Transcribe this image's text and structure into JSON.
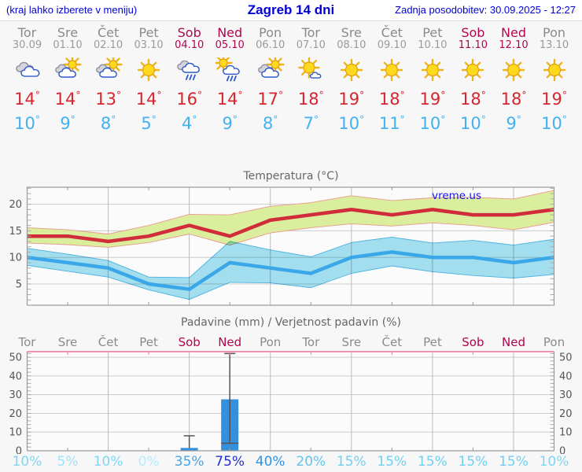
{
  "header": {
    "left_note": "(kraj lahko izberete v meniju)",
    "title": "Zagreb 14 dni",
    "updated": "Zadnja posodobitev: 30.09.2025 - 12:27"
  },
  "strings": {
    "degree": "°"
  },
  "colors": {
    "accent_blue": "#0000d6",
    "weekend_red": "#b2054f",
    "day_gray": "#8a8a8a",
    "tmax_red": "#d8242f",
    "tmin_blue": "#41b1ef",
    "bar_blue": "#3590dc",
    "whisker": "#555555",
    "grid": "#cccccc",
    "frame": "#999999",
    "precip_top_border": "#ee7296",
    "watermark_blue": "#1414e6"
  },
  "days": [
    {
      "name": "Tor",
      "date": "30.09",
      "weekend": false,
      "icon": "cloudy",
      "tmax": "14",
      "tmin": "10"
    },
    {
      "name": "Sre",
      "date": "01.10",
      "weekend": false,
      "icon": "partly-cloudy",
      "tmax": "14",
      "tmin": "9"
    },
    {
      "name": "Čet",
      "date": "02.10",
      "weekend": false,
      "icon": "partly-cloudy",
      "tmax": "13",
      "tmin": "8"
    },
    {
      "name": "Pet",
      "date": "03.10",
      "weekend": false,
      "icon": "sunny",
      "tmax": "14",
      "tmin": "5"
    },
    {
      "name": "Sob",
      "date": "04.10",
      "weekend": true,
      "icon": "rain",
      "tmax": "16",
      "tmin": "4"
    },
    {
      "name": "Ned",
      "date": "05.10",
      "weekend": true,
      "icon": "sun-rain",
      "tmax": "14",
      "tmin": "9"
    },
    {
      "name": "Pon",
      "date": "06.10",
      "weekend": false,
      "icon": "partly-cloudy",
      "tmax": "17",
      "tmin": "8"
    },
    {
      "name": "Tor",
      "date": "07.10",
      "weekend": false,
      "icon": "mostly-sunny",
      "tmax": "18",
      "tmin": "7"
    },
    {
      "name": "Sre",
      "date": "08.10",
      "weekend": false,
      "icon": "sunny",
      "tmax": "19",
      "tmin": "10"
    },
    {
      "name": "Čet",
      "date": "09.10",
      "weekend": false,
      "icon": "sunny",
      "tmax": "18",
      "tmin": "11"
    },
    {
      "name": "Pet",
      "date": "10.10",
      "weekend": false,
      "icon": "sunny",
      "tmax": "19",
      "tmin": "10"
    },
    {
      "name": "Sob",
      "date": "11.10",
      "weekend": true,
      "icon": "sunny",
      "tmax": "18",
      "tmin": "10"
    },
    {
      "name": "Ned",
      "date": "12.10",
      "weekend": true,
      "icon": "sunny",
      "tmax": "18",
      "tmin": "9"
    },
    {
      "name": "Pon",
      "date": "13.10",
      "weekend": false,
      "icon": "sunny",
      "tmax": "19",
      "tmin": "10"
    }
  ],
  "chart_data": [
    {
      "type": "line",
      "title": "Temperatura (°C)",
      "watermark": "vreme.us",
      "x_labels": [
        "Tor",
        "Sre",
        "Čet",
        "Pet",
        "Sob",
        "Ned",
        "Pon",
        "Tor",
        "Sre",
        "Čet",
        "Pet",
        "Sob",
        "Ned",
        "Pon"
      ],
      "ylim": [
        1,
        23.2
      ],
      "yticks": [
        5,
        10,
        15,
        20
      ],
      "grid": true,
      "series": [
        {
          "name": "max-temp",
          "color": "#d02c3c",
          "values": [
            14,
            14,
            13,
            14,
            16,
            14,
            17,
            18,
            19,
            18,
            19,
            18,
            18,
            19
          ]
        },
        {
          "name": "min-temp",
          "color": "#3aa8e8",
          "values": [
            10,
            9,
            8,
            5,
            4,
            9,
            8,
            7,
            10,
            11,
            10,
            10,
            9,
            10
          ]
        }
      ],
      "bands": [
        {
          "name": "max-temp-range",
          "fill": "#dbee9e",
          "edge": "#e89a8a",
          "upper": [
            15.6,
            15.2,
            14.4,
            16.0,
            18.1,
            18.0,
            19.6,
            20.3,
            21.6,
            20.7,
            21.2,
            21.3,
            21.0,
            22.6
          ],
          "lower": [
            12.7,
            12.4,
            11.9,
            12.8,
            14.4,
            12.3,
            14.6,
            15.6,
            16.3,
            15.9,
            16.5,
            16.0,
            15.2,
            16.6
          ]
        },
        {
          "name": "min-temp-range",
          "fill": "#a6e2f3",
          "edge": "#4ab4e4",
          "upper": [
            11.7,
            10.6,
            9.4,
            6.3,
            6.2,
            13.0,
            11.4,
            10.1,
            12.8,
            13.8,
            12.7,
            13.2,
            12.3,
            13.4
          ],
          "lower": [
            8.5,
            7.4,
            6.3,
            3.9,
            2.1,
            5.3,
            5.2,
            4.3,
            7.0,
            8.4,
            7.3,
            6.6,
            6.1,
            6.8
          ]
        }
      ]
    },
    {
      "type": "bar",
      "title": "Padavine (mm) / Verjetnost padavin (%)",
      "x_labels": [
        "Tor",
        "Sre",
        "Čet",
        "Pet",
        "Sob",
        "Ned",
        "Pon",
        "Tor",
        "Sre",
        "Čet",
        "Pet",
        "Sob",
        "Ned",
        "Pon"
      ],
      "ylim": [
        0,
        53
      ],
      "yticks": [
        0,
        10,
        20,
        30,
        40,
        50
      ],
      "grid": true,
      "bars": [
        {
          "day": "Sob",
          "index": 4,
          "precip_mm": 1.5,
          "whisker_top_mm": 8
        },
        {
          "day": "Ned",
          "index": 5,
          "precip_mm": 27.5,
          "whisker_top_mm": 52,
          "marker_mm": 4
        }
      ],
      "probabilities": [
        {
          "label": "10%",
          "color": "#7ed6f4"
        },
        {
          "label": "5%",
          "color": "#9fe2f8"
        },
        {
          "label": "10%",
          "color": "#7ed6f4"
        },
        {
          "label": "0%",
          "color": "#b7edfb"
        },
        {
          "label": "35%",
          "color": "#46a4e8"
        },
        {
          "label": "75%",
          "color": "#2030c8"
        },
        {
          "label": "40%",
          "color": "#2f92e2"
        },
        {
          "label": "20%",
          "color": "#62c5ef"
        },
        {
          "label": "15%",
          "color": "#70d0f2"
        },
        {
          "label": "15%",
          "color": "#70d0f2"
        },
        {
          "label": "15%",
          "color": "#70d0f2"
        },
        {
          "label": "15%",
          "color": "#70d0f2"
        },
        {
          "label": "15%",
          "color": "#70d0f2"
        },
        {
          "label": "10%",
          "color": "#7ed6f4"
        }
      ]
    }
  ]
}
